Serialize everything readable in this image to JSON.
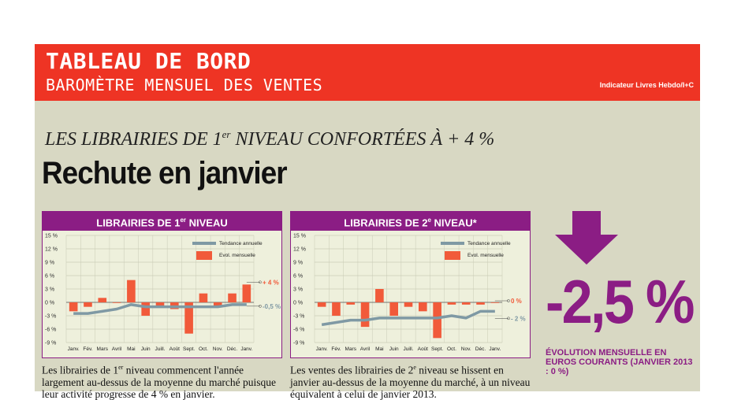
{
  "header": {
    "title": "TABLEAU DE BORD",
    "subtitle": "BAROMÈTRE MENSUEL DES VENTES",
    "source": "Indicateur Livres Hebdo/I+C"
  },
  "article": {
    "kicker_before": "LES LIBRAIRIES DE 1",
    "kicker_sup": "er",
    "kicker_after": " NIVEAU CONFORTÉES À  + 4 %",
    "headline": "Rechute en janvier"
  },
  "summary": {
    "value": "-2,5 %",
    "caption": "ÉVOLUTION MENSUELLE EN EUROS COURANTS (JANVIER 2013 : 0 %)"
  },
  "colors": {
    "bar": "#f15a3a",
    "trend": "#7f99a4",
    "accent": "#8b1d84",
    "banner": "#ee3424"
  },
  "chart_data": [
    {
      "type": "bar",
      "title_before": "LIBRAIRIES DE 1",
      "title_sup": "er",
      "title_after": " NIVEAU",
      "categories": [
        "Janv.",
        "Fév.",
        "Mars",
        "Avril",
        "Mai",
        "Juin",
        "Juill.",
        "Août",
        "Sept.",
        "Oct.",
        "Nov.",
        "Déc.",
        "Janv."
      ],
      "yticks": [
        "15 %",
        "12 %",
        "9 %",
        "6 %",
        "3 %",
        "0 %",
        "-3 %",
        "-6 %",
        "-9 %"
      ],
      "ylim": [
        -9,
        15
      ],
      "legend": [
        "Tendance annuelle",
        "Evol. mensuelle"
      ],
      "series": [
        {
          "name": "Evol. mensuelle",
          "values": [
            -2,
            -1,
            1,
            0,
            5,
            -3,
            -1,
            -1.5,
            -7,
            2,
            -1,
            2,
            4
          ]
        },
        {
          "name": "Tendance annuelle",
          "values": [
            -2.5,
            -2.5,
            -2,
            -1.5,
            -0.5,
            -1,
            -1,
            -1,
            -1,
            -1,
            -1,
            -0.5,
            -0.5
          ]
        }
      ],
      "labels": {
        "bar": "+ 4 %",
        "trend": "-0,5 %"
      },
      "description_before": "Les librairies de 1",
      "description_sup": "er",
      "description_after": " niveau commencent l'année largement au-dessus de la moyenne du marché puisque leur activité progresse de 4 % en janvier."
    },
    {
      "type": "bar",
      "title_before": "LIBRAIRIES DE 2",
      "title_sup": "e",
      "title_after": " NIVEAU*",
      "categories": [
        "Janv.",
        "Fév.",
        "Mars",
        "Avril",
        "Mai",
        "Juin",
        "Juill.",
        "Août",
        "Sept.",
        "Oct.",
        "Nov.",
        "Déc.",
        "Janv."
      ],
      "yticks": [
        "15 %",
        "12 %",
        "9 %",
        "6 %",
        "3 %",
        "0 %",
        "-3 %",
        "-6 %",
        "-9 %"
      ],
      "ylim": [
        -9,
        15
      ],
      "legend": [
        "Tendance annuelle",
        "Evol. mensuelle"
      ],
      "series": [
        {
          "name": "Evol. mensuelle",
          "values": [
            -1,
            -3,
            -0.5,
            -5.5,
            3,
            -3,
            -1,
            -2,
            -8,
            -0.5,
            -0.5,
            -0.5,
            0
          ]
        },
        {
          "name": "Tendance annuelle",
          "values": [
            -5,
            -4.5,
            -4,
            -4,
            -3.5,
            -3.5,
            -3.5,
            -3.5,
            -3.5,
            -3,
            -3.5,
            -2,
            -2
          ]
        }
      ],
      "labels": {
        "bar": "0 %",
        "trend": "- 2 %"
      },
      "description_before": "Les ventes des librairies de 2",
      "description_sup": "e",
      "description_after": " niveau se hissent en janvier au-dessus de la moyenne du marché, à un niveau équivalent à celui de janvier 2013."
    }
  ]
}
